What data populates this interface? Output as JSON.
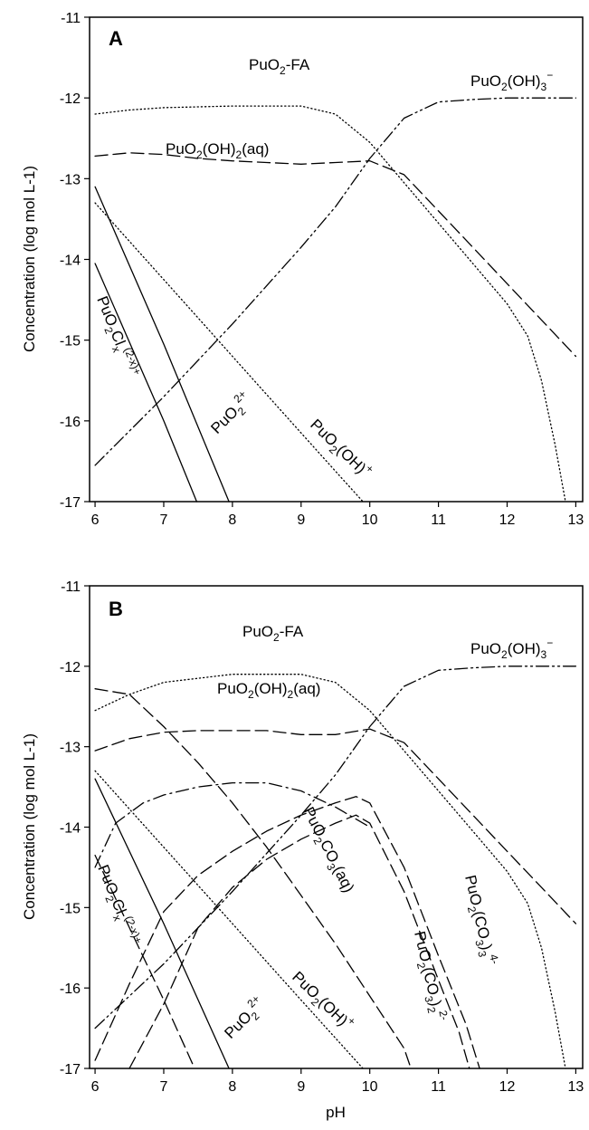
{
  "chart_data": [
    {
      "type": "line",
      "panel_label": "A",
      "ylabel": "Concentration (log mol L-1)",
      "xlabel": "",
      "xlim": [
        5.92,
        13.1
      ],
      "ylim": [
        -17,
        -11
      ],
      "xticks": [
        6,
        7,
        8,
        9,
        10,
        11,
        12,
        13
      ],
      "xtick_labels": [
        "6",
        "7",
        "8",
        "9",
        "10",
        "11",
        "12",
        "13"
      ],
      "yticks": [
        -17,
        -16,
        -15,
        -14,
        -13,
        -12,
        -11
      ],
      "ytick_labels": [
        "-17",
        "-16",
        "-15",
        "-14",
        "-13",
        "-12",
        "-11"
      ],
      "grid": false,
      "series": [
        {
          "name": "PuO2-FA",
          "style": "dotted",
          "x": [
            6,
            6.5,
            7,
            8,
            9,
            9.5,
            10,
            10.5,
            11,
            11.5,
            12,
            12.3,
            12.5,
            12.7,
            12.85
          ],
          "y": [
            -12.2,
            -12.15,
            -12.12,
            -12.1,
            -12.1,
            -12.2,
            -12.55,
            -13.05,
            -13.55,
            -14.05,
            -14.55,
            -14.95,
            -15.5,
            -16.3,
            -17
          ]
        },
        {
          "name": "PuO2(OH)3-",
          "style": "dash-dot-dot",
          "x": [
            6,
            7,
            8,
            9,
            9.5,
            10,
            10.5,
            11,
            11.5,
            12,
            13
          ],
          "y": [
            -16.55,
            -15.7,
            -14.8,
            -13.85,
            -13.35,
            -12.75,
            -12.25,
            -12.05,
            -12.02,
            -12.0,
            -12.0
          ]
        },
        {
          "name": "PuO2(OH)2(aq)",
          "style": "long-dash",
          "x": [
            6,
            6.5,
            7,
            7.5,
            8,
            8.5,
            9,
            9.5,
            10,
            10.5,
            11,
            11.5,
            12,
            12.5,
            13
          ],
          "y": [
            -12.72,
            -12.68,
            -12.7,
            -12.75,
            -12.78,
            -12.8,
            -12.82,
            -12.8,
            -12.78,
            -12.95,
            -13.4,
            -13.85,
            -14.3,
            -14.75,
            -15.2
          ]
        },
        {
          "name": "PuO2(OH)+",
          "style": "dotted",
          "x": [
            6,
            7,
            8,
            9,
            9.9
          ],
          "y": [
            -13.3,
            -14.25,
            -15.2,
            -16.15,
            -17
          ]
        },
        {
          "name": "PuO2 2+",
          "style": "solid",
          "x": [
            6,
            7,
            7.95
          ],
          "y": [
            -13.1,
            -15.05,
            -17
          ]
        },
        {
          "name": "PuO2Cl(2-x)+",
          "style": "solid",
          "x": [
            6,
            7,
            7.48
          ],
          "y": [
            -14.05,
            -16.0,
            -17
          ]
        }
      ],
      "labels": [
        {
          "text": "PuO2-FA"
        },
        {
          "text": "PuO2(OH)3-"
        },
        {
          "text": "PuO2(OH)2(aq)"
        },
        {
          "text": "PuO2Cl(2-x)+"
        },
        {
          "text": "PuO2 2+"
        },
        {
          "text": "PuO2(OH)+"
        }
      ]
    },
    {
      "type": "line",
      "panel_label": "B",
      "ylabel": "Concentration (log mol L-1)",
      "xlabel": "pH",
      "xlim": [
        5.92,
        13.1
      ],
      "ylim": [
        -17,
        -11
      ],
      "xticks": [
        6,
        7,
        8,
        9,
        10,
        11,
        12,
        13
      ],
      "xtick_labels": [
        "6",
        "7",
        "8",
        "9",
        "10",
        "11",
        "12",
        "13"
      ],
      "yticks": [
        -17,
        -16,
        -15,
        -14,
        -13,
        -12,
        -11
      ],
      "ytick_labels": [
        "-17",
        "-16",
        "-15",
        "-14",
        "-13",
        "-12",
        "-11"
      ],
      "grid": false,
      "series": [
        {
          "name": "PuO2-FA",
          "style": "dotted",
          "x": [
            6,
            6.5,
            7,
            8,
            9,
            9.5,
            10,
            10.5,
            11,
            11.5,
            12,
            12.3,
            12.5,
            12.7,
            12.85
          ],
          "y": [
            -12.55,
            -12.35,
            -12.2,
            -12.1,
            -12.1,
            -12.2,
            -12.55,
            -13.05,
            -13.55,
            -14.05,
            -14.55,
            -14.95,
            -15.5,
            -16.3,
            -17
          ]
        },
        {
          "name": "PuO2(OH)3-",
          "style": "dash-dot-dot",
          "x": [
            6,
            7,
            8,
            9,
            9.5,
            10,
            10.5,
            11,
            11.5,
            12,
            13
          ],
          "y": [
            -16.5,
            -15.7,
            -14.8,
            -13.85,
            -13.35,
            -12.75,
            -12.25,
            -12.05,
            -12.02,
            -12.0,
            -12.0
          ]
        },
        {
          "name": "PuO2(OH)2(aq)",
          "style": "long-dash",
          "x": [
            6,
            6.5,
            7,
            7.5,
            8,
            8.5,
            9,
            9.5,
            10,
            10.5,
            11,
            11.5,
            12,
            12.5,
            13
          ],
          "y": [
            -13.05,
            -12.9,
            -12.82,
            -12.8,
            -12.8,
            -12.8,
            -12.85,
            -12.85,
            -12.78,
            -12.95,
            -13.4,
            -13.85,
            -14.3,
            -14.75,
            -15.2
          ]
        },
        {
          "name": "PuO2CO3(aq)",
          "style": "long-dash",
          "x": [
            6,
            6.5,
            7,
            7.5,
            8,
            8.5,
            9,
            9.5,
            10,
            10.5,
            10.6
          ],
          "y": [
            -12.28,
            -12.35,
            -12.75,
            -13.2,
            -13.7,
            -14.25,
            -14.85,
            -15.45,
            -16.1,
            -16.75,
            -17
          ]
        },
        {
          "name": "PuO2(CO3)2 2-",
          "style": "long-dash",
          "x": [
            6.5,
            7,
            7.5,
            8,
            8.5,
            9,
            9.5,
            9.8,
            10,
            10.5,
            11,
            11.3,
            11.45
          ],
          "y": [
            -17,
            -16.2,
            -15.25,
            -14.75,
            -14.4,
            -14.15,
            -13.95,
            -13.85,
            -13.95,
            -14.8,
            -15.9,
            -16.55,
            -17
          ]
        },
        {
          "name": "PuO2(CO3)3 4-",
          "style": "long-dash",
          "x": [
            6,
            6.5,
            7,
            7.5,
            8,
            8.5,
            9,
            9.5,
            9.8,
            10,
            10.5,
            11,
            11.4,
            11.6
          ],
          "y": [
            -16.9,
            -15.95,
            -15.05,
            -14.6,
            -14.3,
            -14.05,
            -13.85,
            -13.7,
            -13.62,
            -13.7,
            -14.5,
            -15.6,
            -16.45,
            -17
          ]
        },
        {
          "name": "unlabeled dash-dot",
          "style": "dash-dot",
          "x": [
            6,
            6.3,
            6.7,
            7,
            7.5,
            8,
            8.5,
            9,
            9.5,
            10
          ],
          "y": [
            -14.5,
            -13.95,
            -13.7,
            -13.6,
            -13.5,
            -13.45,
            -13.45,
            -13.55,
            -13.75,
            -14.0
          ]
        },
        {
          "name": "PuO2(OH)+",
          "style": "dotted",
          "x": [
            6,
            7,
            8,
            9,
            9.9
          ],
          "y": [
            -13.3,
            -14.25,
            -15.2,
            -16.15,
            -17
          ]
        },
        {
          "name": "PuO2 2+",
          "style": "solid",
          "x": [
            6,
            7,
            7.95
          ],
          "y": [
            -13.4,
            -15.2,
            -17
          ]
        },
        {
          "name": "PuO2Cl(2-x)+",
          "style": "long-dash",
          "x": [
            6,
            6.5,
            7,
            7.45
          ],
          "y": [
            -14.35,
            -15.25,
            -16.15,
            -17
          ]
        }
      ],
      "labels": [
        {
          "text": "PuO2-FA"
        },
        {
          "text": "PuO2(OH)3-"
        },
        {
          "text": "PuO2(OH)2(aq)"
        },
        {
          "text": "PuO2CO3(aq)"
        },
        {
          "text": "PuO2(CO3)3 4-"
        },
        {
          "text": "PuO2(CO3)2 2-"
        },
        {
          "text": "PuO2Cl(2-x)+"
        },
        {
          "text": "PuO2(OH)+"
        },
        {
          "text": "PuO2 2+"
        }
      ]
    }
  ]
}
